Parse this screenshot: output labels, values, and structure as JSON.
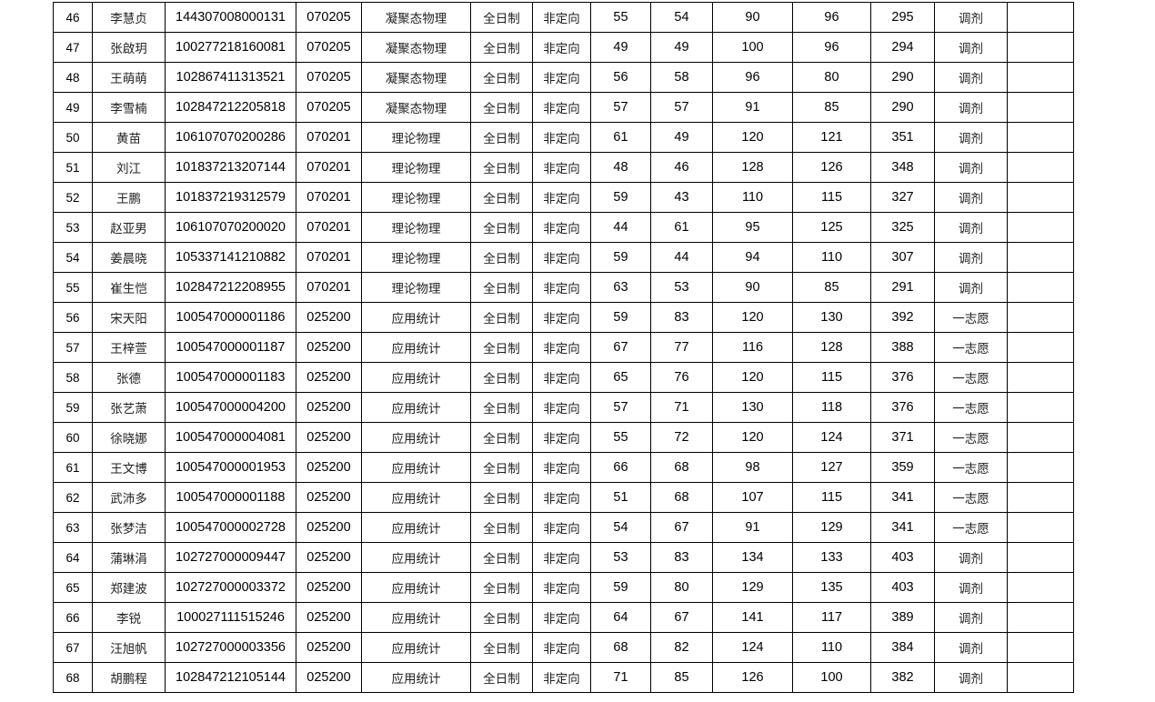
{
  "table": {
    "rows": [
      [
        "46",
        "李慧贞",
        "144307008000131",
        "070205",
        "凝聚态物理",
        "全日制",
        "非定向",
        "55",
        "54",
        "90",
        "96",
        "295",
        "调剂",
        ""
      ],
      [
        "47",
        "张啟玥",
        "100277218160081",
        "070205",
        "凝聚态物理",
        "全日制",
        "非定向",
        "49",
        "49",
        "100",
        "96",
        "294",
        "调剂",
        ""
      ],
      [
        "48",
        "王萌萌",
        "102867411313521",
        "070205",
        "凝聚态物理",
        "全日制",
        "非定向",
        "56",
        "58",
        "96",
        "80",
        "290",
        "调剂",
        ""
      ],
      [
        "49",
        "李雪楠",
        "102847212205818",
        "070205",
        "凝聚态物理",
        "全日制",
        "非定向",
        "57",
        "57",
        "91",
        "85",
        "290",
        "调剂",
        ""
      ],
      [
        "50",
        "黄苗",
        "106107070200286",
        "070201",
        "理论物理",
        "全日制",
        "非定向",
        "61",
        "49",
        "120",
        "121",
        "351",
        "调剂",
        ""
      ],
      [
        "51",
        "刘江",
        "101837213207144",
        "070201",
        "理论物理",
        "全日制",
        "非定向",
        "48",
        "46",
        "128",
        "126",
        "348",
        "调剂",
        ""
      ],
      [
        "52",
        "王鹏",
        "101837219312579",
        "070201",
        "理论物理",
        "全日制",
        "非定向",
        "59",
        "43",
        "110",
        "115",
        "327",
        "调剂",
        ""
      ],
      [
        "53",
        "赵亚男",
        "106107070200020",
        "070201",
        "理论物理",
        "全日制",
        "非定向",
        "44",
        "61",
        "95",
        "125",
        "325",
        "调剂",
        ""
      ],
      [
        "54",
        "姜晨晓",
        "105337141210882",
        "070201",
        "理论物理",
        "全日制",
        "非定向",
        "59",
        "44",
        "94",
        "110",
        "307",
        "调剂",
        ""
      ],
      [
        "55",
        "崔生恺",
        "102847212208955",
        "070201",
        "理论物理",
        "全日制",
        "非定向",
        "63",
        "53",
        "90",
        "85",
        "291",
        "调剂",
        ""
      ],
      [
        "56",
        "宋天阳",
        "100547000001186",
        "025200",
        "应用统计",
        "全日制",
        "非定向",
        "59",
        "83",
        "120",
        "130",
        "392",
        "一志愿",
        ""
      ],
      [
        "57",
        "王梓萱",
        "100547000001187",
        "025200",
        "应用统计",
        "全日制",
        "非定向",
        "67",
        "77",
        "116",
        "128",
        "388",
        "一志愿",
        ""
      ],
      [
        "58",
        "张德",
        "100547000001183",
        "025200",
        "应用统计",
        "全日制",
        "非定向",
        "65",
        "76",
        "120",
        "115",
        "376",
        "一志愿",
        ""
      ],
      [
        "59",
        "张艺萧",
        "100547000004200",
        "025200",
        "应用统计",
        "全日制",
        "非定向",
        "57",
        "71",
        "130",
        "118",
        "376",
        "一志愿",
        ""
      ],
      [
        "60",
        "徐晓娜",
        "100547000004081",
        "025200",
        "应用统计",
        "全日制",
        "非定向",
        "55",
        "72",
        "120",
        "124",
        "371",
        "一志愿",
        ""
      ],
      [
        "61",
        "王文博",
        "100547000001953",
        "025200",
        "应用统计",
        "全日制",
        "非定向",
        "66",
        "68",
        "98",
        "127",
        "359",
        "一志愿",
        ""
      ],
      [
        "62",
        "武沛多",
        "100547000001188",
        "025200",
        "应用统计",
        "全日制",
        "非定向",
        "51",
        "68",
        "107",
        "115",
        "341",
        "一志愿",
        ""
      ],
      [
        "63",
        "张梦洁",
        "100547000002728",
        "025200",
        "应用统计",
        "全日制",
        "非定向",
        "54",
        "67",
        "91",
        "129",
        "341",
        "一志愿",
        ""
      ],
      [
        "64",
        "蒲琳涓",
        "102727000009447",
        "025200",
        "应用统计",
        "全日制",
        "非定向",
        "53",
        "83",
        "134",
        "133",
        "403",
        "调剂",
        ""
      ],
      [
        "65",
        "郑建波",
        "102727000003372",
        "025200",
        "应用统计",
        "全日制",
        "非定向",
        "59",
        "80",
        "129",
        "135",
        "403",
        "调剂",
        ""
      ],
      [
        "66",
        "李锐",
        "100027111515246",
        "025200",
        "应用统计",
        "全日制",
        "非定向",
        "64",
        "67",
        "141",
        "117",
        "389",
        "调剂",
        ""
      ],
      [
        "67",
        "汪旭帆",
        "102727000003356",
        "025200",
        "应用统计",
        "全日制",
        "非定向",
        "68",
        "82",
        "124",
        "110",
        "384",
        "调剂",
        ""
      ],
      [
        "68",
        "胡鹏程",
        "102847212105144",
        "025200",
        "应用统计",
        "全日制",
        "非定向",
        "71",
        "85",
        "126",
        "100",
        "382",
        "调剂",
        ""
      ]
    ]
  }
}
